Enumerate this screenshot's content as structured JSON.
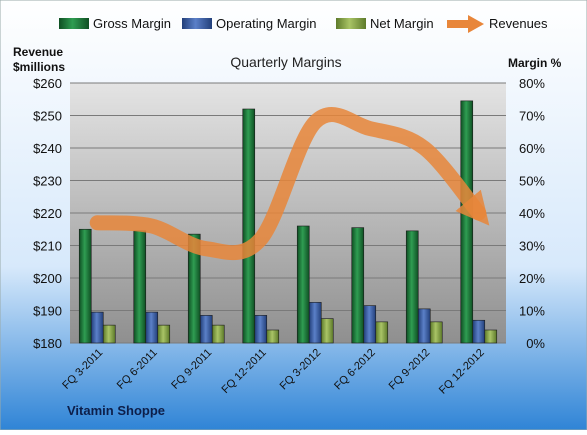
{
  "chart_data": {
    "type": "bar",
    "title": "Quarterly Margins",
    "company": "Vitamin Shoppe",
    "y_left_label_line1": "Revenue",
    "y_left_label_line2": "$millions",
    "y_right_label": "Margin %",
    "y_left_ticks": [
      "$180",
      "$190",
      "$200",
      "$210",
      "$220",
      "$230",
      "$240",
      "$250",
      "$260"
    ],
    "y_right_ticks": [
      "0%",
      "10%",
      "20%",
      "30%",
      "40%",
      "50%",
      "60%",
      "70%",
      "80%"
    ],
    "ylim_left": [
      180,
      260
    ],
    "ylim_right": [
      0,
      80
    ],
    "categories": [
      "FQ 3-2011",
      "FQ 6-2011",
      "FQ 9-2011",
      "FQ 12-2011",
      "FQ 3-2012",
      "FQ 6-2012",
      "FQ 9-2012",
      "FQ 12-2012"
    ],
    "series": [
      {
        "name": "Gross Margin",
        "axis": "right",
        "color": "#1d7a3a",
        "values": [
          35,
          34.5,
          33.5,
          72,
          36,
          35.5,
          34.5,
          74.5
        ]
      },
      {
        "name": "Operating Margin",
        "axis": "right",
        "color": "#3f62a8",
        "values": [
          9.5,
          9.5,
          8.5,
          8.5,
          12.5,
          11.5,
          10.5,
          7
        ]
      },
      {
        "name": "Net Margin",
        "axis": "right",
        "color": "#8aa64a",
        "values": [
          5.5,
          5.5,
          5.5,
          4,
          7.5,
          6.5,
          6.5,
          4
        ]
      },
      {
        "name": "Revenues",
        "axis": "left",
        "color": "#e8863a",
        "values": [
          217,
          216,
          209,
          212,
          248,
          246,
          240,
          220
        ]
      }
    ],
    "legend_position": "top",
    "grid": true
  }
}
